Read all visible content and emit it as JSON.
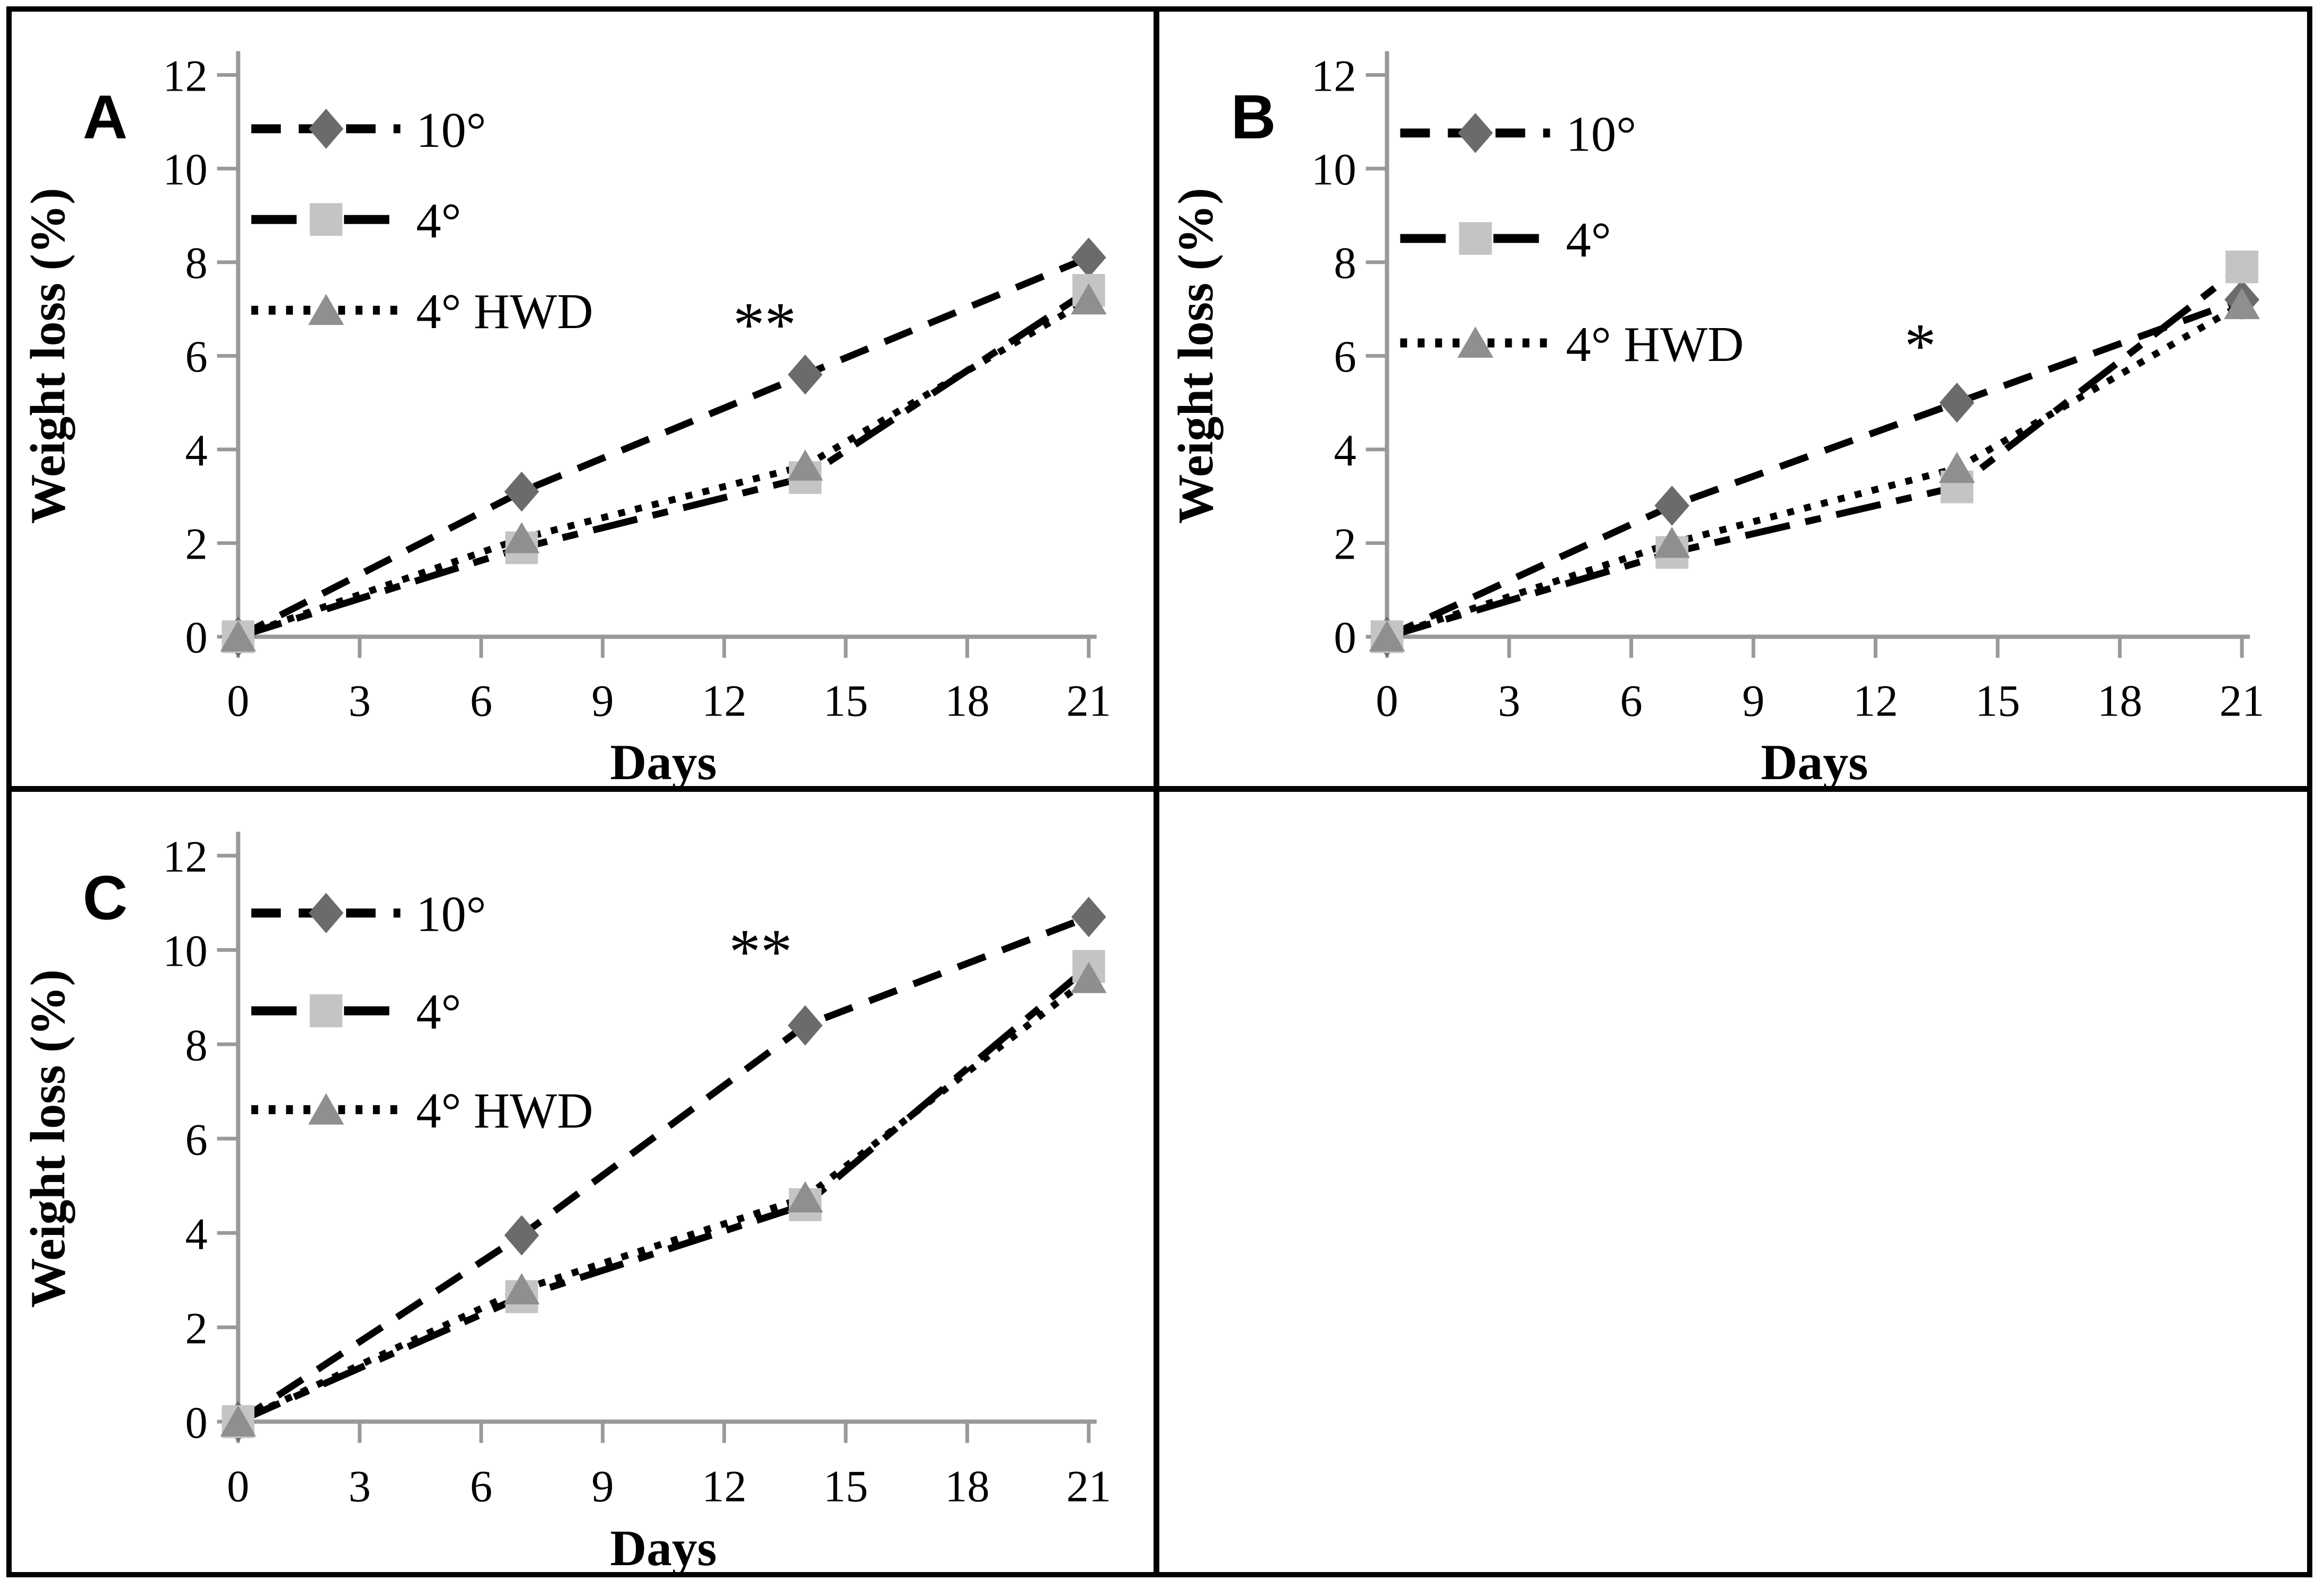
{
  "figure": {
    "background": "#ffffff",
    "frame_color": "#000000",
    "panel_letters": [
      "A",
      "B",
      "C"
    ],
    "empty_cell": true
  },
  "colors": {
    "marker_diamond": "#6b6b6b",
    "marker_square": "#c4c4c4",
    "marker_triangle": "#8f8f8f",
    "line": "#000000",
    "axis": "#999999",
    "text": "#000000",
    "frame": "#000000",
    "background": "#ffffff"
  },
  "chart_data": [
    {
      "type": "line",
      "panel_label": "A",
      "title": "",
      "xlabel": "Days",
      "ylabel": "Weight loss (%)",
      "x": [
        0,
        7,
        14,
        21
      ],
      "xticks": [
        0,
        3,
        6,
        9,
        12,
        15,
        18,
        21
      ],
      "yticks": [
        0,
        2,
        4,
        6,
        8,
        10,
        12
      ],
      "xlim": [
        0,
        21
      ],
      "ylim": [
        0,
        12
      ],
      "grid": false,
      "legend_position": "top-left",
      "annotation": {
        "text": "**",
        "x": 13.0,
        "y": 7.0
      },
      "series": [
        {
          "name": "10°",
          "values": [
            0,
            3.1,
            5.6,
            8.1
          ],
          "marker": "diamond",
          "marker_color": "#6b6b6b",
          "line_color": "#000000",
          "line_style": "dashed"
        },
        {
          "name": "4°",
          "values": [
            0,
            1.9,
            3.4,
            7.4
          ],
          "marker": "square",
          "marker_color": "#c4c4c4",
          "line_color": "#000000",
          "line_style": "long-dash"
        },
        {
          "name": "4° HWD",
          "values": [
            0,
            2.1,
            3.65,
            7.2
          ],
          "marker": "triangle",
          "marker_color": "#8f8f8f",
          "line_color": "#000000",
          "line_style": "dotted"
        }
      ]
    },
    {
      "type": "line",
      "panel_label": "B",
      "title": "",
      "xlabel": "Days",
      "ylabel": "Weight loss (%)",
      "x": [
        0,
        7,
        14,
        21
      ],
      "xticks": [
        0,
        3,
        6,
        9,
        12,
        15,
        18,
        21
      ],
      "yticks": [
        0,
        2,
        4,
        6,
        8,
        10,
        12
      ],
      "xlim": [
        0,
        21
      ],
      "ylim": [
        0,
        12
      ],
      "grid": false,
      "legend_position": "top-left",
      "annotation": {
        "text": "*",
        "x": 13.1,
        "y": 6.55
      },
      "series": [
        {
          "name": "10°",
          "values": [
            0,
            2.8,
            5.0,
            7.2
          ],
          "marker": "diamond",
          "marker_color": "#6b6b6b",
          "line_color": "#000000",
          "line_style": "dashed"
        },
        {
          "name": "4°",
          "values": [
            0,
            1.8,
            3.2,
            7.9
          ],
          "marker": "square",
          "marker_color": "#c4c4c4",
          "line_color": "#000000",
          "line_style": "long-dash"
        },
        {
          "name": "4° HWD",
          "values": [
            0,
            2.0,
            3.6,
            7.1
          ],
          "marker": "triangle",
          "marker_color": "#8f8f8f",
          "line_color": "#000000",
          "line_style": "dotted"
        }
      ]
    },
    {
      "type": "line",
      "panel_label": "C",
      "title": "",
      "xlabel": "Days",
      "ylabel": "Weight loss (%)",
      "x": [
        0,
        7,
        14,
        21
      ],
      "xticks": [
        0,
        3,
        6,
        9,
        12,
        15,
        18,
        21
      ],
      "yticks": [
        0,
        2,
        4,
        6,
        8,
        10,
        12
      ],
      "xlim": [
        0,
        21
      ],
      "ylim": [
        0,
        12
      ],
      "grid": false,
      "legend_position": "top-left",
      "annotation": {
        "text": "**",
        "x": 12.9,
        "y": 10.3
      },
      "series": [
        {
          "name": "10°",
          "values": [
            0,
            3.95,
            8.4,
            10.7
          ],
          "marker": "diamond",
          "marker_color": "#6b6b6b",
          "line_color": "#000000",
          "line_style": "dashed"
        },
        {
          "name": "4°",
          "values": [
            0,
            2.65,
            4.6,
            9.65
          ],
          "marker": "square",
          "marker_color": "#c4c4c4",
          "line_color": "#000000",
          "line_style": "long-dash"
        },
        {
          "name": "4° HWD",
          "values": [
            0,
            2.8,
            4.75,
            9.4
          ],
          "marker": "triangle",
          "marker_color": "#8f8f8f",
          "line_color": "#000000",
          "line_style": "dotted"
        }
      ]
    }
  ]
}
